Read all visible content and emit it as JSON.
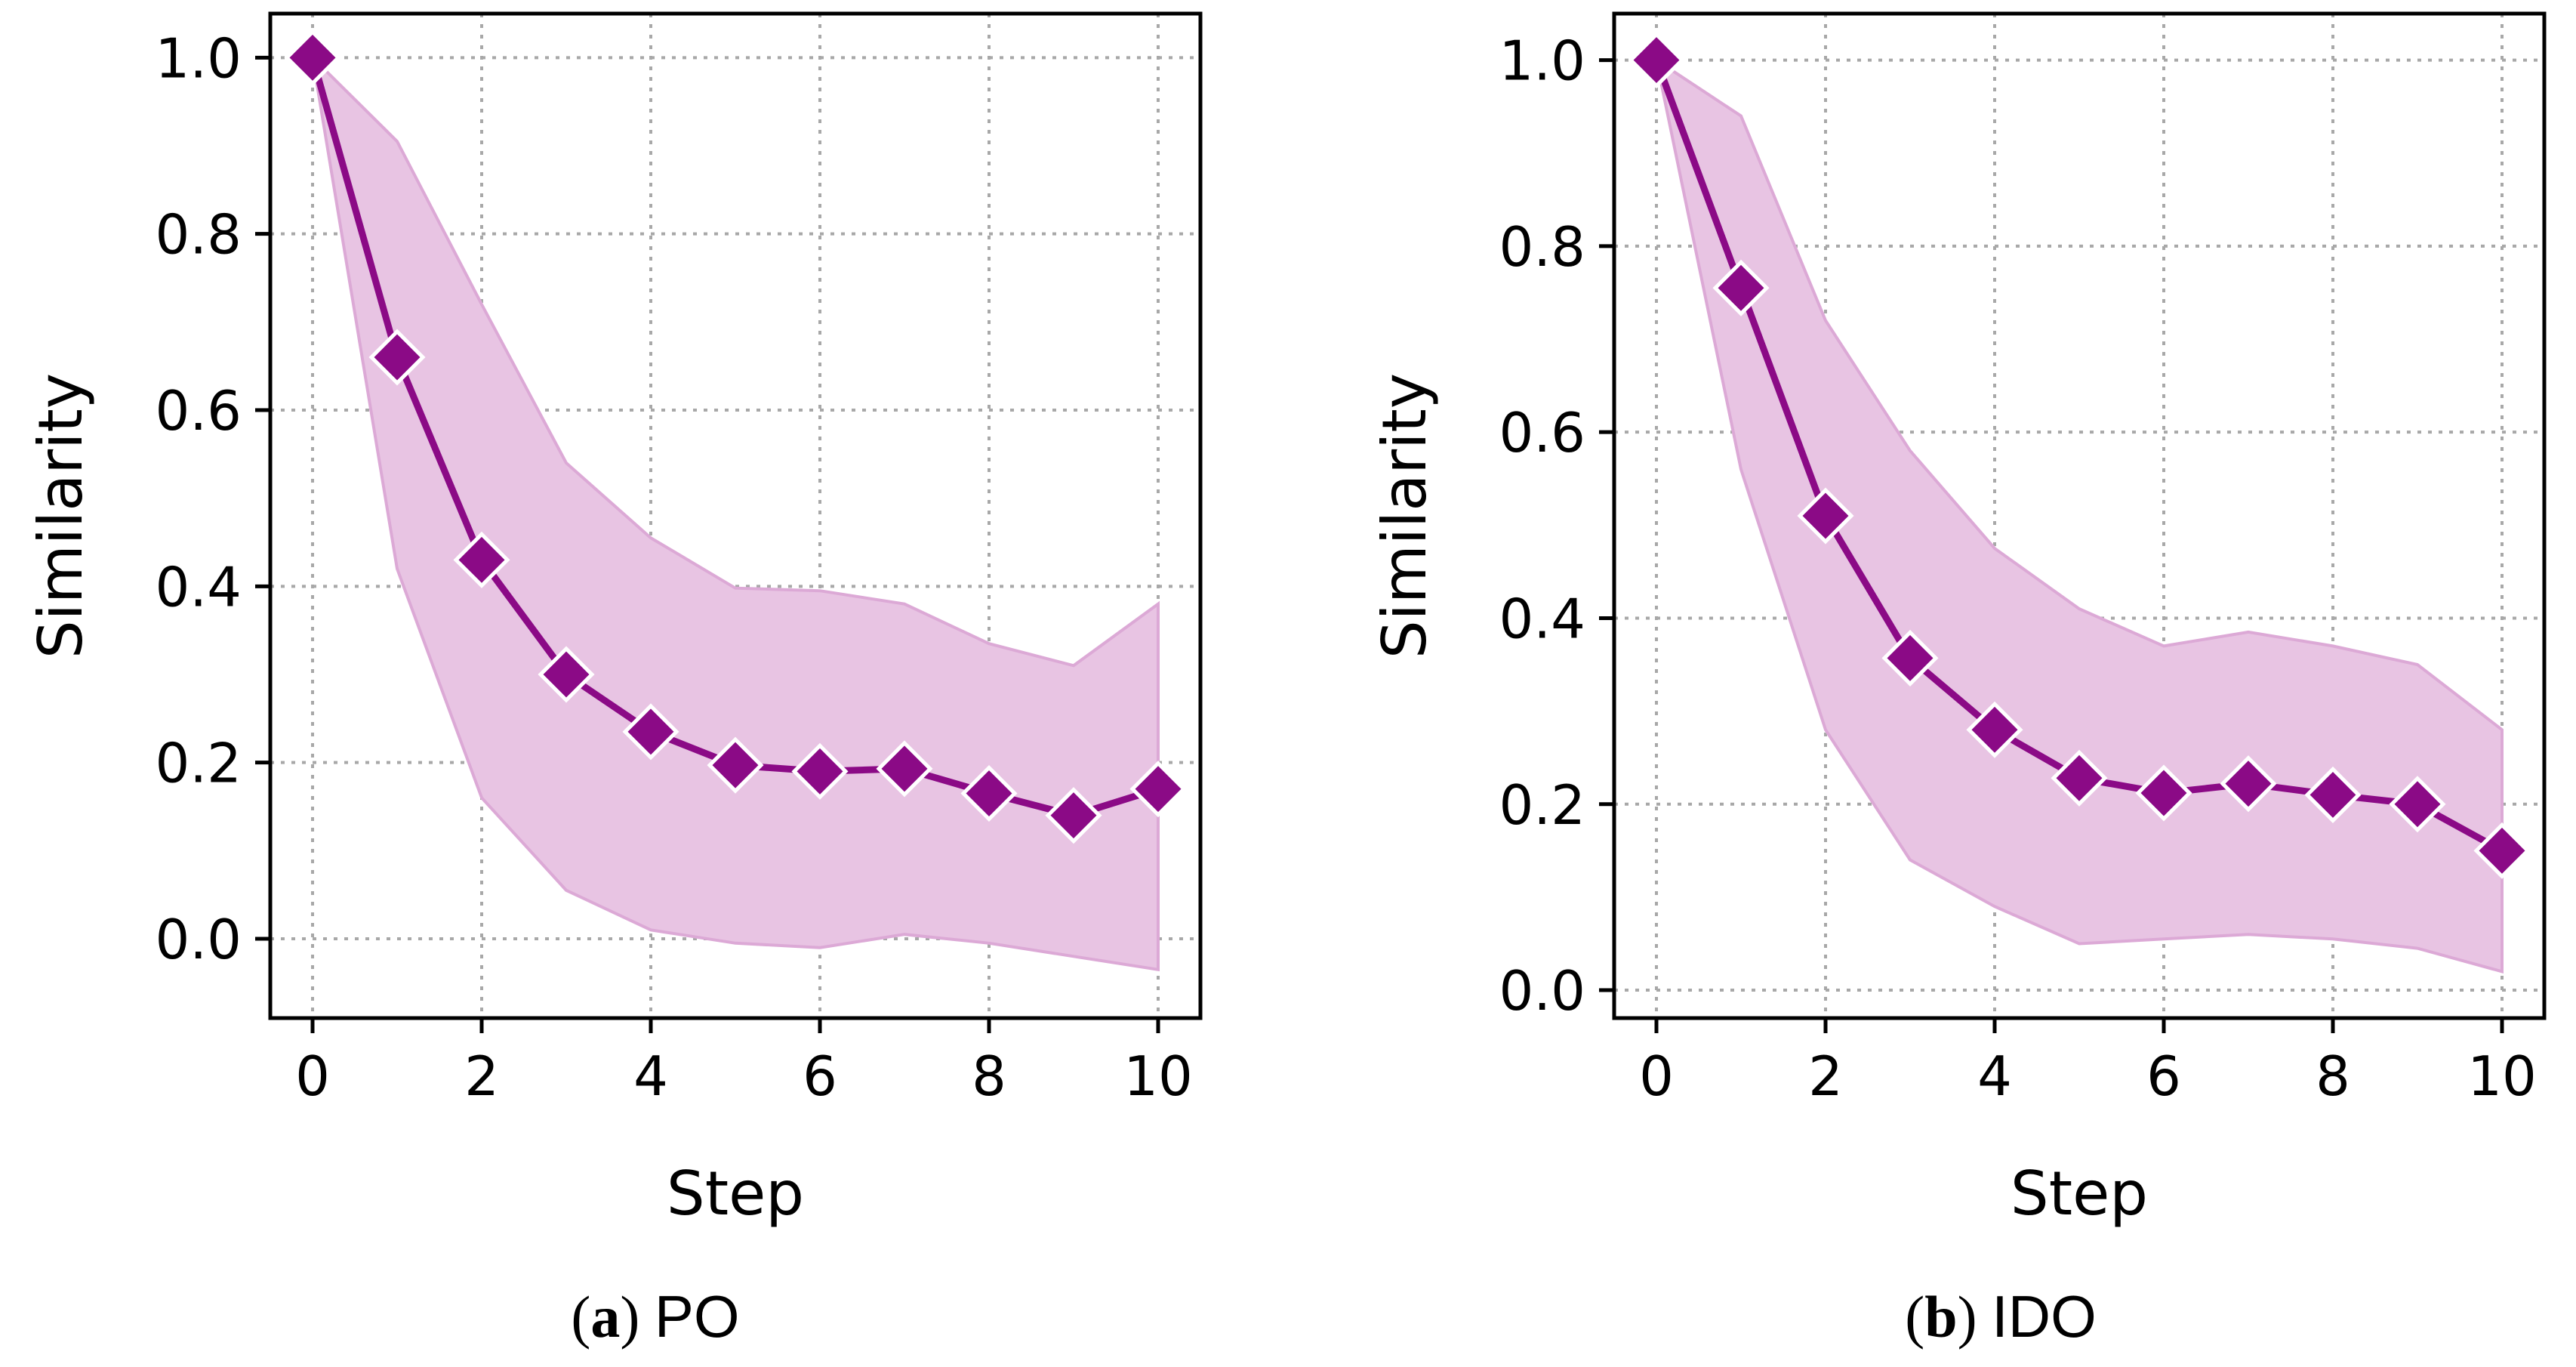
{
  "colors": {
    "line": "#8b0a86",
    "band": "#e8c4e3",
    "band_edge": "#dca9d6",
    "grid": "#a8a8a8"
  },
  "chart_data": [
    {
      "type": "line",
      "caption_letter": "a",
      "caption_text": "PO",
      "xlabel": "Step",
      "ylabel": "Similarity",
      "xlim": [
        -0.5,
        10.5
      ],
      "ylim": [
        -0.09,
        1.05
      ],
      "xticks": [
        0,
        2,
        4,
        6,
        8,
        10
      ],
      "xtick_labels": [
        "0",
        "2",
        "4",
        "6",
        "8",
        "10"
      ],
      "yticks": [
        0.0,
        0.2,
        0.4,
        0.6,
        0.8,
        1.0
      ],
      "ytick_labels": [
        "0.0",
        "0.2",
        "0.4",
        "0.6",
        "0.8",
        "1.0"
      ],
      "grid": true,
      "marker": "diamond",
      "x": [
        0,
        1,
        2,
        3,
        4,
        5,
        6,
        7,
        8,
        9,
        10
      ],
      "values": [
        1.0,
        0.66,
        0.43,
        0.3,
        0.235,
        0.197,
        0.19,
        0.193,
        0.165,
        0.14,
        0.17
      ],
      "band_upper": [
        1.0,
        0.905,
        0.72,
        0.54,
        0.455,
        0.398,
        0.395,
        0.38,
        0.335,
        0.31,
        0.38
      ],
      "band_lower": [
        1.0,
        0.42,
        0.16,
        0.055,
        0.01,
        -0.005,
        -0.01,
        0.005,
        -0.005,
        -0.02,
        -0.035
      ]
    },
    {
      "type": "line",
      "caption_letter": "b",
      "caption_text": "IDO",
      "xlabel": "Step",
      "ylabel": "Similarity",
      "xlim": [
        -0.5,
        10.5
      ],
      "ylim": [
        -0.03,
        1.05
      ],
      "xticks": [
        0,
        2,
        4,
        6,
        8,
        10
      ],
      "xtick_labels": [
        "0",
        "2",
        "4",
        "6",
        "8",
        "10"
      ],
      "yticks": [
        0.0,
        0.2,
        0.4,
        0.6,
        0.8,
        1.0
      ],
      "ytick_labels": [
        "0.0",
        "0.2",
        "0.4",
        "0.6",
        "0.8",
        "1.0"
      ],
      "grid": true,
      "marker": "diamond",
      "x": [
        0,
        1,
        2,
        3,
        4,
        5,
        6,
        7,
        8,
        9,
        10
      ],
      "values": [
        1.0,
        0.755,
        0.51,
        0.357,
        0.28,
        0.228,
        0.212,
        0.222,
        0.21,
        0.2,
        0.15
      ],
      "band_upper": [
        1.0,
        0.94,
        0.72,
        0.58,
        0.475,
        0.41,
        0.37,
        0.385,
        0.37,
        0.35,
        0.28
      ],
      "band_lower": [
        1.0,
        0.56,
        0.28,
        0.14,
        0.09,
        0.05,
        0.055,
        0.06,
        0.055,
        0.045,
        0.02
      ]
    }
  ]
}
